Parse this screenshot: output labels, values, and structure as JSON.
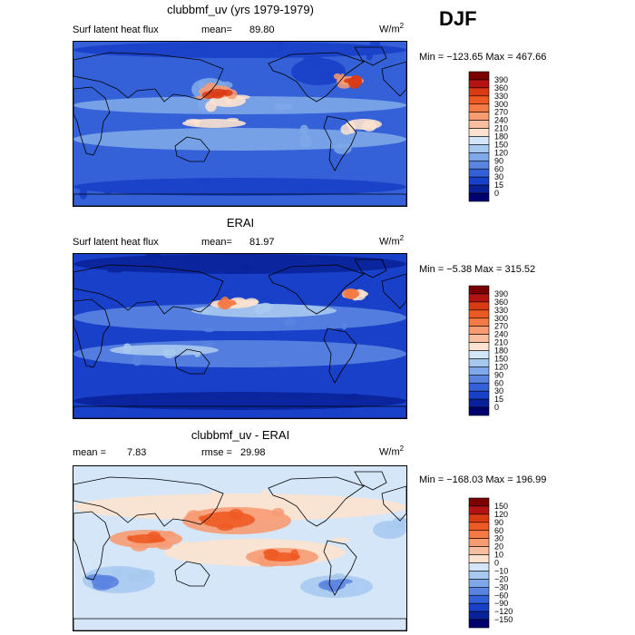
{
  "season": "DJF",
  "panels": [
    {
      "title": "clubbmf_uv (yrs 1979-1979)",
      "left_label": "Surf latent heat flux",
      "stat1_label": "mean=",
      "stat1_value": "89.80",
      "stat2_label": "",
      "stat2_value": "",
      "units": "W/m",
      "units_sup": "2",
      "minmax": "Min = −123.65  Max = 467.66"
    },
    {
      "title": "ERAI",
      "left_label": "Surf latent heat flux",
      "stat1_label": "mean=",
      "stat1_value": "81.97",
      "stat2_label": "",
      "stat2_value": "",
      "units": "W/m",
      "units_sup": "2",
      "minmax": "Min =   −5.38  Max = 315.52"
    },
    {
      "title": "clubbmf_uv - ERAI",
      "left_label": "mean =",
      "stat1_label": "",
      "stat1_value": "7.83",
      "stat2_label": "rmse =",
      "stat2_value": "29.98",
      "units": "W/m",
      "units_sup": "2",
      "minmax": "Min = −168.03  Max = 196.99"
    }
  ],
  "chart_data": [
    {
      "type": "heatmap",
      "title": "clubbmf_uv (yrs 1979-1979)",
      "variable": "Surf latent heat flux",
      "units": "W/m2",
      "mean": 89.8,
      "min": -123.65,
      "max": 467.66,
      "colorbar_levels": [
        "390",
        "360",
        "330",
        "300",
        "270",
        "240",
        "210",
        "180",
        "150",
        "120",
        "90",
        "60",
        "30",
        "15",
        "0"
      ],
      "colorbar_colors": [
        "#7a0000",
        "#b31313",
        "#d93b14",
        "#ee5a24",
        "#f47a45",
        "#f79b73",
        "#f9bda0",
        "#fde3cf",
        "#d4e6f7",
        "#a8c9ef",
        "#7ea8e8",
        "#5a84e0",
        "#3561d8",
        "#1840c8",
        "#0a2299",
        "#00006e"
      ]
    },
    {
      "type": "heatmap",
      "title": "ERAI",
      "variable": "Surf latent heat flux",
      "units": "W/m2",
      "mean": 81.97,
      "min": -5.38,
      "max": 315.52,
      "colorbar_levels": [
        "390",
        "360",
        "330",
        "300",
        "270",
        "240",
        "210",
        "180",
        "150",
        "120",
        "90",
        "60",
        "30",
        "15",
        "0"
      ],
      "colorbar_colors": [
        "#7a0000",
        "#b31313",
        "#d93b14",
        "#ee5a24",
        "#f47a45",
        "#f79b73",
        "#f9bda0",
        "#fde3cf",
        "#d4e6f7",
        "#a8c9ef",
        "#7ea8e8",
        "#5a84e0",
        "#3561d8",
        "#1840c8",
        "#0a2299",
        "#00006e"
      ]
    },
    {
      "type": "heatmap",
      "title": "clubbmf_uv - ERAI",
      "units": "W/m2",
      "mean": 7.83,
      "rmse": 29.98,
      "min": -168.03,
      "max": 196.99,
      "colorbar_levels": [
        "150",
        "120",
        "90",
        "60",
        "30",
        "20",
        "10",
        "0",
        "−10",
        "−20",
        "−30",
        "−60",
        "−90",
        "−120",
        "−150"
      ],
      "colorbar_colors": [
        "#7a0000",
        "#b31313",
        "#d93b14",
        "#ee5a24",
        "#f47a45",
        "#f79b73",
        "#f9bda0",
        "#fde3cf",
        "#d4e6f7",
        "#a8c9ef",
        "#7ea8e8",
        "#5a84e0",
        "#3561d8",
        "#1840c8",
        "#0a2299",
        "#00006e"
      ]
    }
  ]
}
